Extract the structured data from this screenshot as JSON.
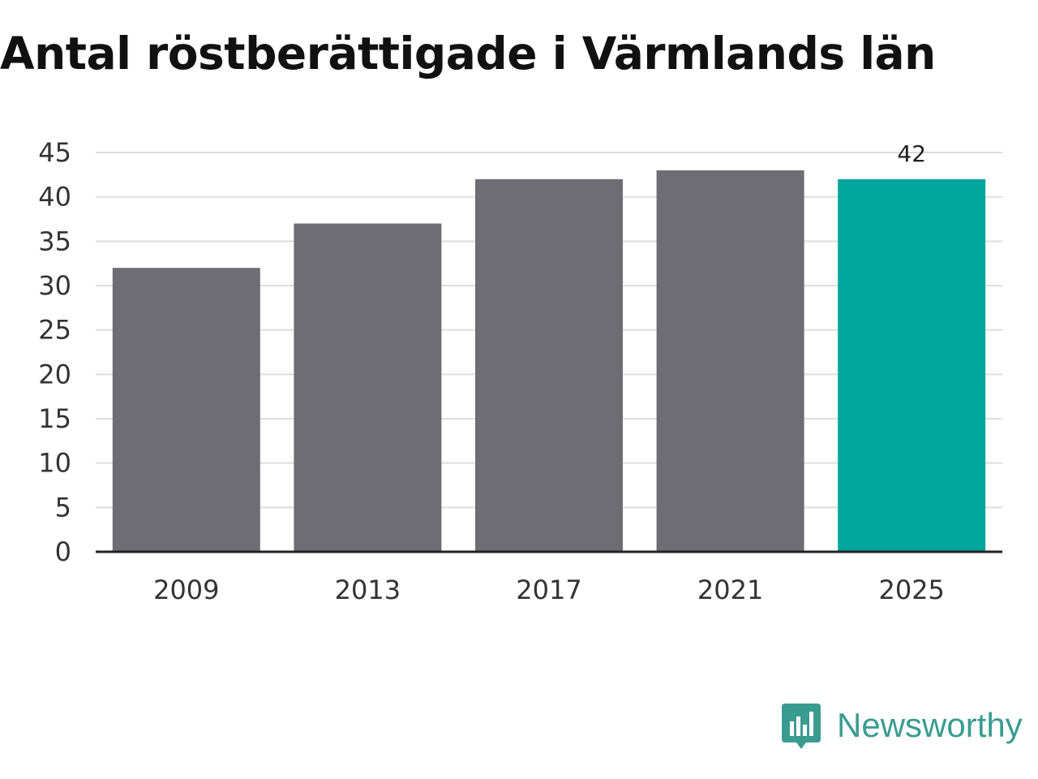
{
  "title": "Antal röstberättigade i Värmlands län",
  "brand": {
    "name": "Newsworthy",
    "icon": "newsworthy-logo-icon",
    "color": "#3a9c90"
  },
  "colors": {
    "bar": "#6e6d74",
    "highlight": "#00a59b",
    "grid": "#dddddd",
    "axis": "#222222"
  },
  "chart_data": {
    "type": "bar",
    "title": "Antal röstberättigade i Värmlands län",
    "xlabel": "",
    "ylabel": "",
    "categories": [
      "2009",
      "2013",
      "2017",
      "2021",
      "2025"
    ],
    "values": [
      32,
      37,
      42,
      43,
      42
    ],
    "highlight_index": 4,
    "data_labels": [
      {
        "index": 4,
        "text": "42"
      }
    ],
    "ylim": [
      0,
      45
    ],
    "yticks": [
      "0",
      "5",
      "10",
      "15",
      "20",
      "25",
      "30",
      "35",
      "40",
      "45"
    ],
    "grid": true,
    "legend": "none"
  }
}
